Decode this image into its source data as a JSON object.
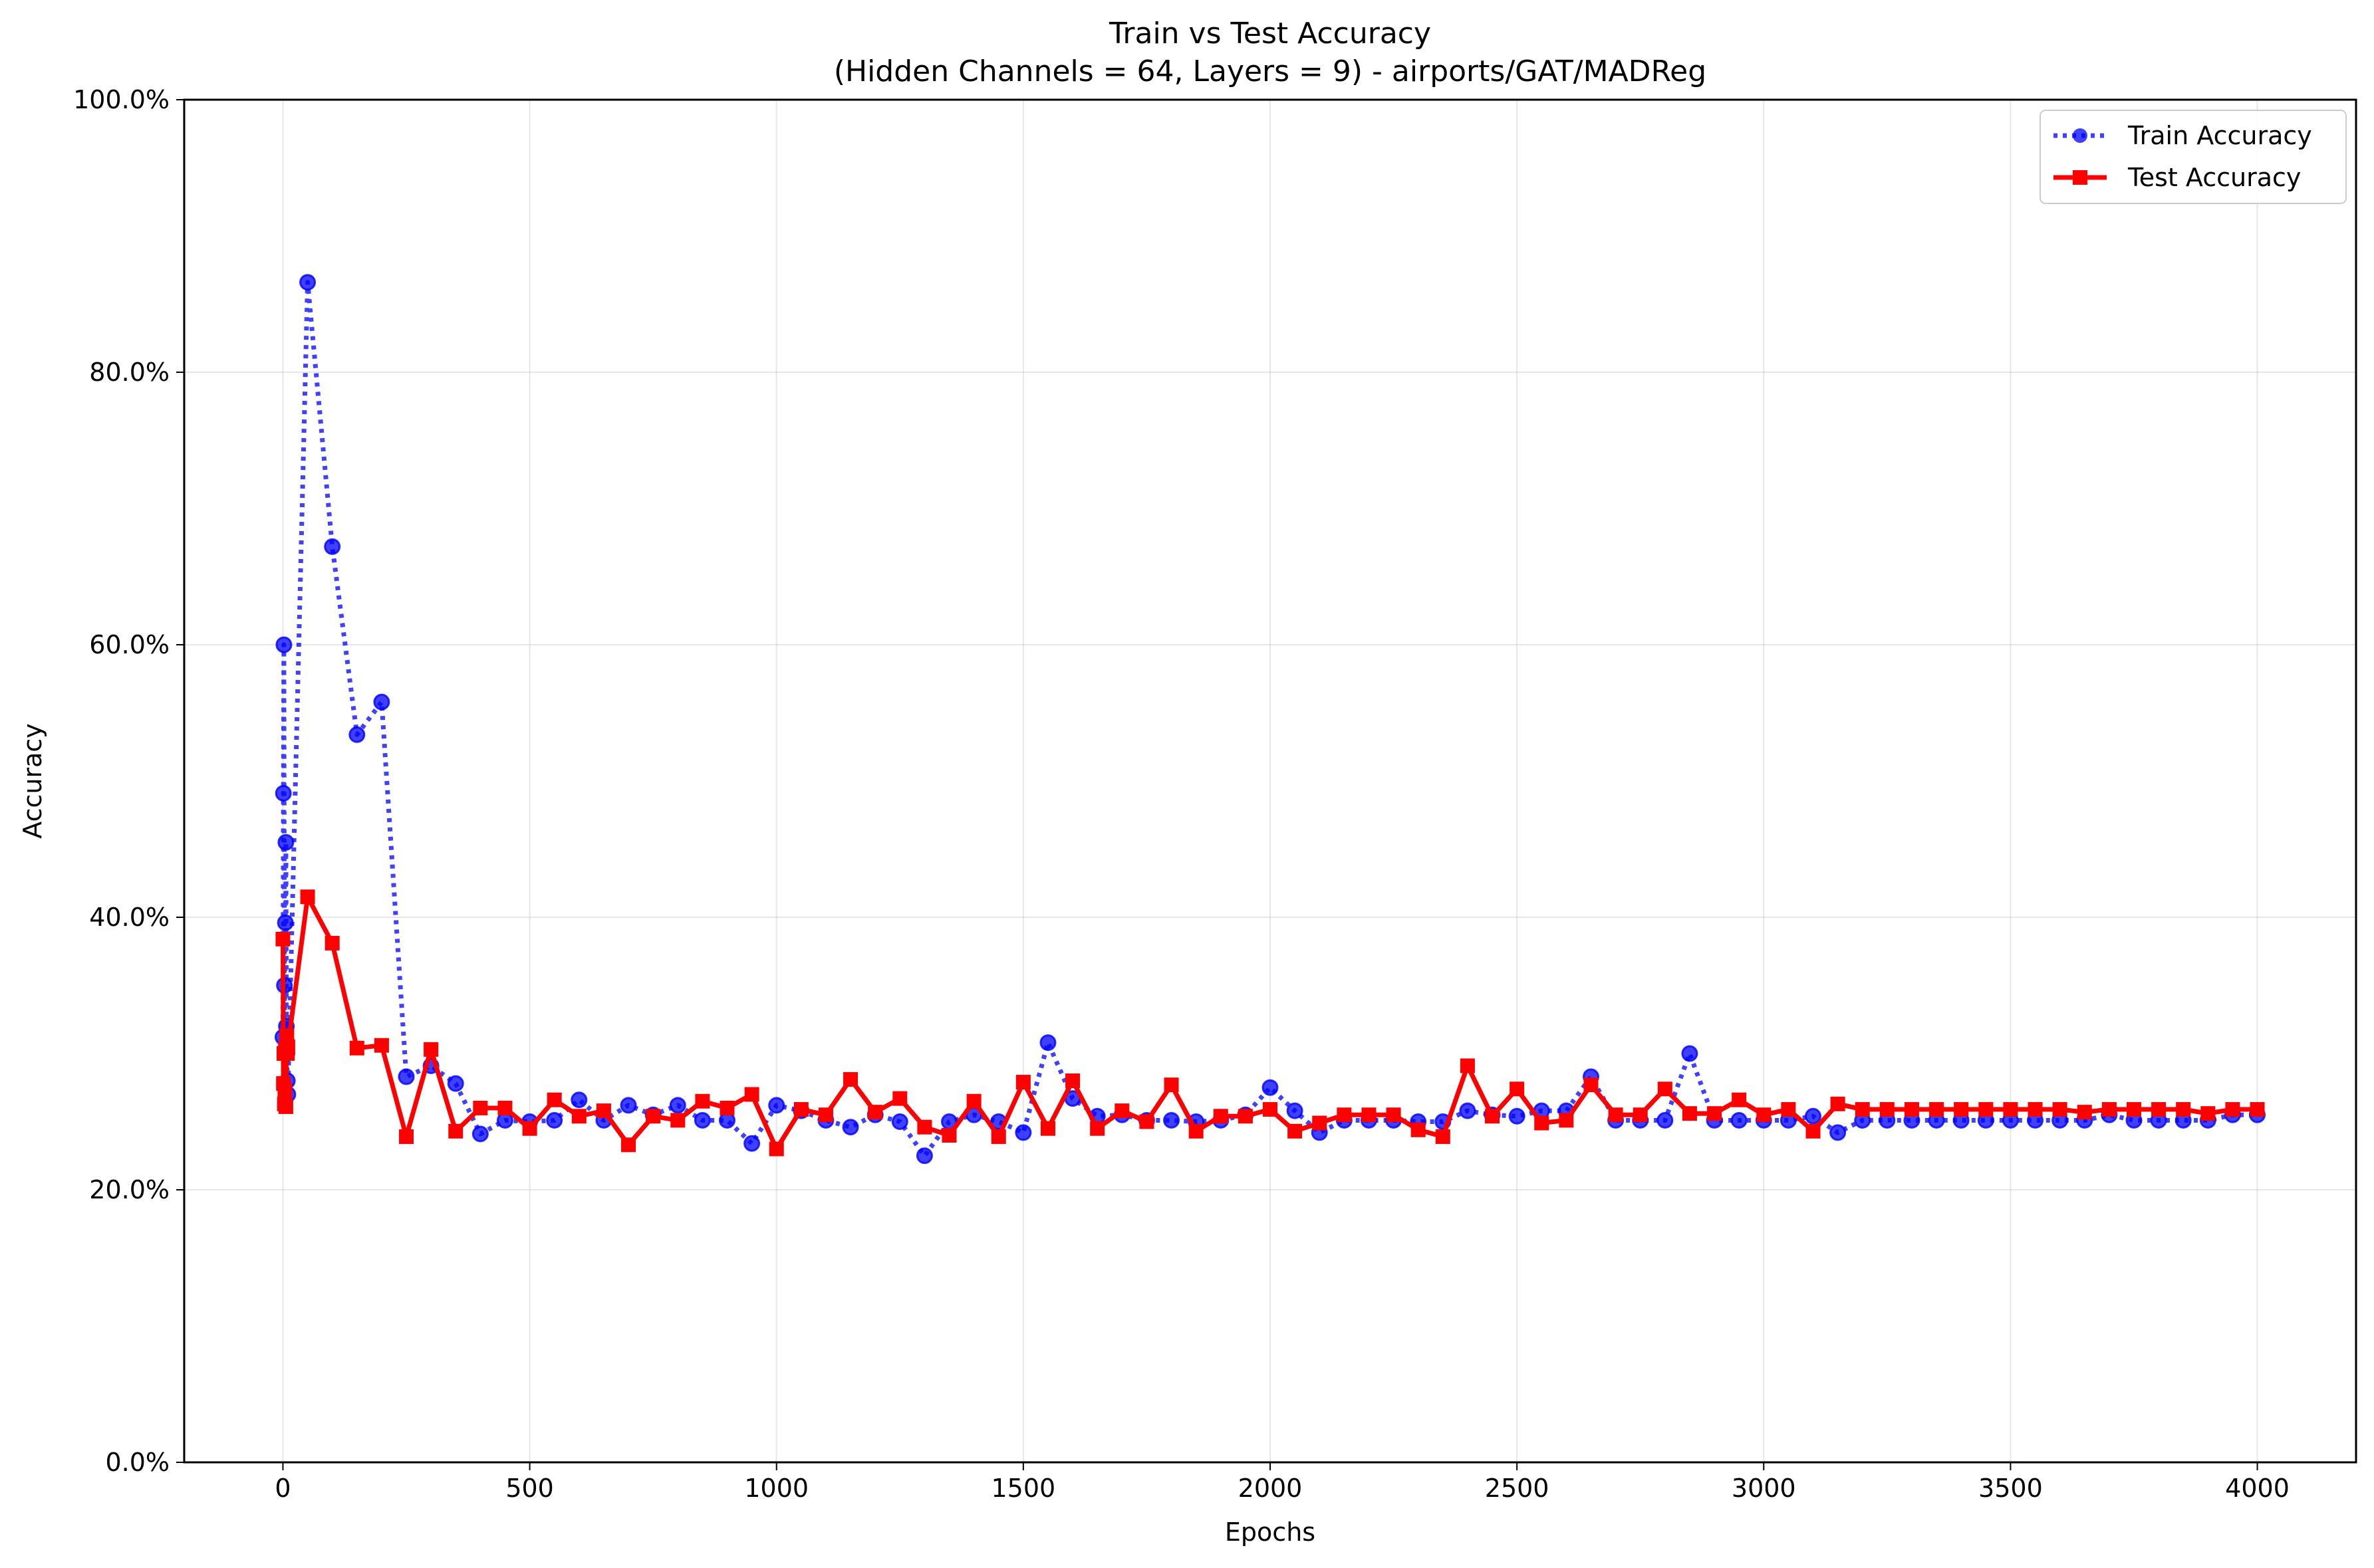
{
  "chart_data": {
    "type": "line",
    "title": "Train vs Test Accuracy",
    "subtitle": "(Hidden Channels = 64, Layers = 9) - airports/GAT/MADReg",
    "xlabel": "Epochs",
    "ylabel": "Accuracy",
    "xlim": [
      -200,
      4200
    ],
    "ylim": [
      0,
      1
    ],
    "x_ticks": [
      0,
      500,
      1000,
      1500,
      2000,
      2500,
      3000,
      3500,
      4000
    ],
    "x_tick_labels": [
      "0",
      "500",
      "1000",
      "1500",
      "2000",
      "2500",
      "3000",
      "3500",
      "4000"
    ],
    "y_ticks": [
      0,
      0.2,
      0.4,
      0.6,
      0.8,
      1.0
    ],
    "y_tick_labels": [
      "0.0%",
      "20.0%",
      "40.0%",
      "60.0%",
      "80.0%",
      "100.0%"
    ],
    "grid": true,
    "legend_position": "top-right",
    "x": [
      0,
      1,
      2,
      3,
      4,
      5,
      6,
      7,
      8,
      9,
      10,
      50,
      100,
      150,
      200,
      250,
      300,
      350,
      400,
      450,
      500,
      550,
      600,
      650,
      700,
      750,
      800,
      850,
      900,
      950,
      1000,
      1050,
      1100,
      1150,
      1200,
      1250,
      1300,
      1350,
      1400,
      1450,
      1500,
      1550,
      1600,
      1650,
      1700,
      1750,
      1800,
      1850,
      1900,
      1950,
      2000,
      2050,
      2100,
      2150,
      2200,
      2250,
      2300,
      2350,
      2400,
      2450,
      2500,
      2550,
      2600,
      2650,
      2700,
      2750,
      2800,
      2850,
      2900,
      2950,
      3000,
      3050,
      3100,
      3150,
      3200,
      3250,
      3300,
      3350,
      3400,
      3450,
      3500,
      3550,
      3600,
      3650,
      3700,
      3750,
      3800,
      3850,
      3900,
      3950,
      4000
    ],
    "series": [
      {
        "name": "Train Accuracy",
        "color": "#0000ff",
        "linestyle": "dotted",
        "marker": "circle",
        "values": [
          0.312,
          0.491,
          0.6,
          0.35,
          0.3,
          0.396,
          0.455,
          0.32,
          0.3,
          0.28,
          0.27,
          0.866,
          0.672,
          0.534,
          0.558,
          0.283,
          0.291,
          0.278,
          0.241,
          0.251,
          0.25,
          0.251,
          0.266,
          0.251,
          0.262,
          0.255,
          0.262,
          0.251,
          0.251,
          0.234,
          0.262,
          0.258,
          0.251,
          0.246,
          0.255,
          0.25,
          0.225,
          0.25,
          0.255,
          0.25,
          0.242,
          0.308,
          0.267,
          0.254,
          0.255,
          0.251,
          0.251,
          0.25,
          0.251,
          0.255,
          0.275,
          0.258,
          0.242,
          0.251,
          0.251,
          0.251,
          0.25,
          0.25,
          0.258,
          0.255,
          0.254,
          0.258,
          0.258,
          0.283,
          0.251,
          0.251,
          0.251,
          0.3,
          0.251,
          0.251,
          0.251,
          0.251,
          0.254,
          0.242,
          0.251,
          0.251,
          0.251,
          0.251,
          0.251,
          0.251,
          0.251,
          0.251,
          0.251,
          0.251,
          0.255,
          0.251,
          0.251,
          0.251,
          0.251,
          0.255,
          0.255
        ]
      },
      {
        "name": "Test Accuracy",
        "color": "#ff0000",
        "linestyle": "solid",
        "marker": "square",
        "values": [
          0.384,
          0.278,
          0.3,
          0.263,
          0.273,
          0.303,
          0.261,
          0.304,
          0.313,
          0.3,
          0.305,
          0.415,
          0.381,
          0.304,
          0.306,
          0.239,
          0.303,
          0.243,
          0.26,
          0.26,
          0.245,
          0.266,
          0.254,
          0.258,
          0.233,
          0.254,
          0.251,
          0.265,
          0.26,
          0.27,
          0.23,
          0.259,
          0.255,
          0.281,
          0.257,
          0.267,
          0.246,
          0.24,
          0.265,
          0.239,
          0.279,
          0.245,
          0.28,
          0.245,
          0.258,
          0.25,
          0.277,
          0.243,
          0.254,
          0.254,
          0.259,
          0.243,
          0.249,
          0.255,
          0.255,
          0.255,
          0.244,
          0.239,
          0.291,
          0.254,
          0.274,
          0.249,
          0.251,
          0.277,
          0.255,
          0.255,
          0.274,
          0.256,
          0.256,
          0.266,
          0.255,
          0.259,
          0.243,
          0.263,
          0.259,
          0.259,
          0.259,
          0.259,
          0.259,
          0.259,
          0.259,
          0.259,
          0.259,
          0.257,
          0.259,
          0.259,
          0.259,
          0.259,
          0.256,
          0.259,
          0.259
        ]
      }
    ]
  }
}
